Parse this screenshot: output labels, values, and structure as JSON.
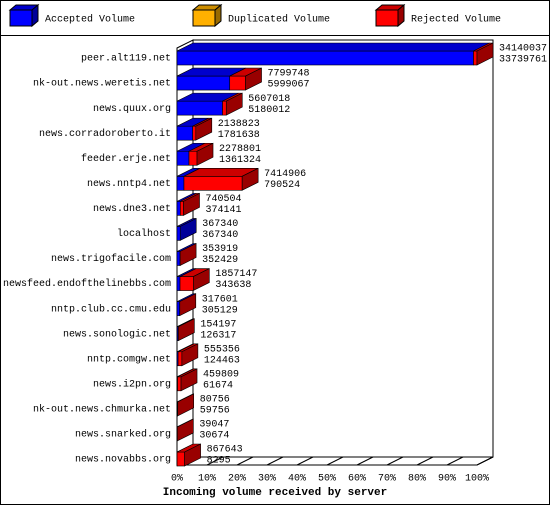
{
  "chart_data": {
    "type": "bar3d",
    "title": "Incoming volume received by server",
    "legend": [
      {
        "name": "Accepted Volume",
        "color": "#0000ff"
      },
      {
        "name": "Duplicated Volume",
        "color": "#ffb000"
      },
      {
        "name": "Rejected Volume",
        "color": "#ff0000"
      }
    ],
    "categories": [
      "peer.alt119.net",
      "nk-out.news.weretis.net",
      "news.quux.org",
      "news.corradoroberto.it",
      "feeder.erje.net",
      "news.nntp4.net",
      "news.dne3.net",
      "localhost",
      "news.trigofacile.com",
      "newsfeed.endofthelinebbs.com",
      "nntp.club.cc.cmu.edu",
      "news.sonologic.net",
      "nntp.comgw.net",
      "news.i2pn.org",
      "nk-out.news.chmurka.net",
      "news.snarked.org",
      "news.novabbs.org"
    ],
    "totals": [
      34140037,
      7799748,
      5607018,
      2138823,
      2278801,
      7414906,
      740504,
      367340,
      353919,
      1857147,
      317601,
      154197,
      555356,
      459809,
      80756,
      39047,
      867643
    ],
    "accepted": [
      33739761,
      5999067,
      5180012,
      1781638,
      1361324,
      790524,
      374141,
      367340,
      352429,
      343638,
      305129,
      126317,
      124463,
      61674,
      59756,
      30674,
      8295
    ],
    "xlim": [
      0,
      100
    ],
    "xticks": [
      {
        "value": 0,
        "label": "0%"
      },
      {
        "value": 10,
        "label": "10%"
      },
      {
        "value": 20,
        "label": "20%"
      },
      {
        "value": 30,
        "label": "30%"
      },
      {
        "value": 40,
        "label": "40%"
      },
      {
        "value": 50,
        "label": "50%"
      },
      {
        "value": 60,
        "label": "60%"
      },
      {
        "value": 70,
        "label": "70%"
      },
      {
        "value": 80,
        "label": "80%"
      },
      {
        "value": 90,
        "label": "90%"
      },
      {
        "value": 100,
        "label": "100%"
      }
    ]
  }
}
